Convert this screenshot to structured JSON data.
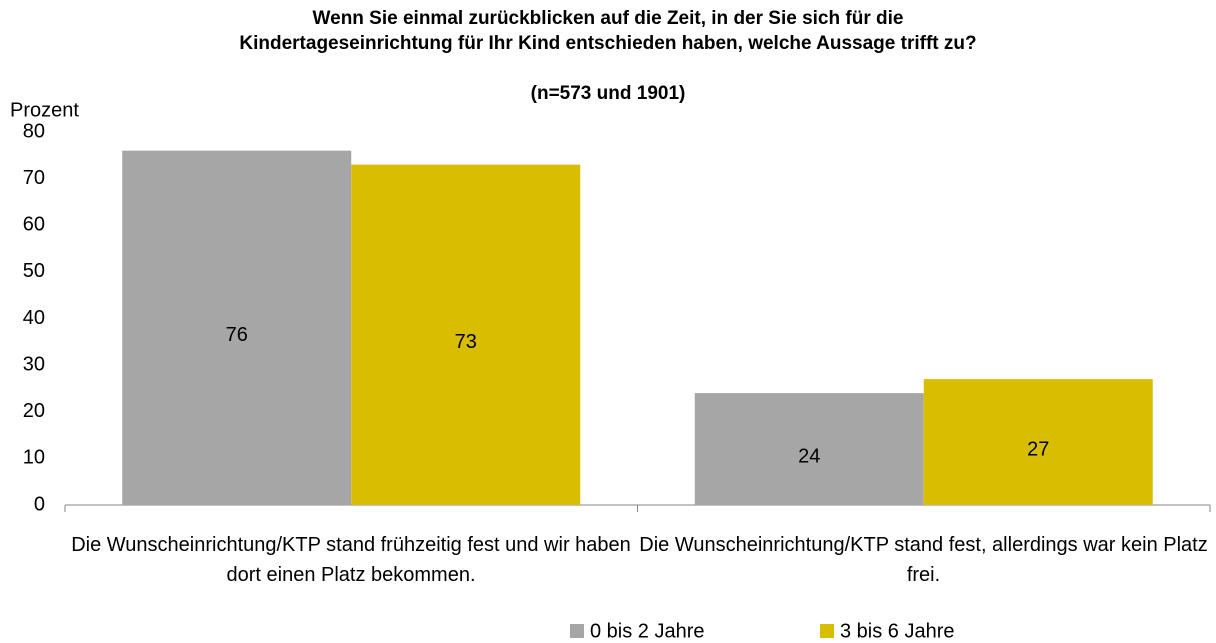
{
  "chart_data": {
    "type": "bar",
    "title": "Wenn Sie einmal zurückblicken auf die Zeit, in der Sie sich für die Kindertageseinrichtung für Ihr Kind entschieden haben, welche Aussage trifft zu?",
    "subtitle": "(n=573 und 1901)",
    "y_label": "Prozent",
    "categories": [
      "Die Wunscheinrichtung/KTP stand frühzeitig fest und wir haben dort einen Platz bekommen.",
      "Die Wunscheinrichtung/KTP stand fest, allerdings war kein Platz frei."
    ],
    "series": [
      {
        "name": "0 bis 2 Jahre",
        "color": "#a6a6a6",
        "values": [
          76,
          24
        ]
      },
      {
        "name": "3 bis 6 Jahre",
        "color": "#d9bd00",
        "values": [
          73,
          27
        ]
      }
    ],
    "ylim": [
      0,
      80
    ],
    "yticks": [
      0,
      10,
      20,
      30,
      40,
      50,
      60,
      70,
      80
    ],
    "grid": false,
    "legend": "bottom"
  }
}
